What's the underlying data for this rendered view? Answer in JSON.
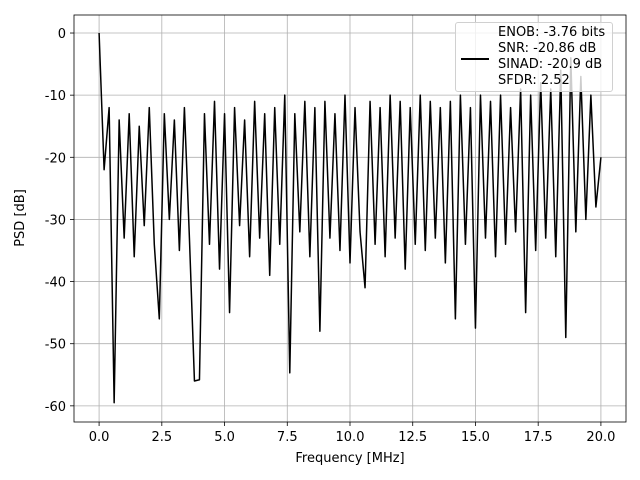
{
  "chart_data": {
    "type": "line",
    "xlabel": "Frequency [MHz]",
    "ylabel": "PSD [dB]",
    "x": [
      0,
      0.2,
      0.4,
      0.6,
      0.8,
      1.0,
      1.2,
      1.4,
      1.6,
      1.8,
      2.0,
      2.2,
      2.4,
      2.6,
      2.8,
      3.0,
      3.2,
      3.4,
      3.6,
      3.8,
      4.0,
      4.2,
      4.4,
      4.6,
      4.8,
      5.0,
      5.2,
      5.4,
      5.6,
      5.8,
      6.0,
      6.2,
      6.4,
      6.6,
      6.8,
      7.0,
      7.2,
      7.4,
      7.6,
      7.8,
      8.0,
      8.2,
      8.4,
      8.6,
      8.8,
      9.0,
      9.2,
      9.4,
      9.6,
      9.8,
      10.0,
      10.2,
      10.4,
      10.6,
      10.8,
      11.0,
      11.2,
      11.4,
      11.6,
      11.8,
      12.0,
      12.2,
      12.4,
      12.6,
      12.8,
      13.0,
      13.2,
      13.4,
      13.6,
      13.8,
      14.0,
      14.2,
      14.4,
      14.6,
      14.8,
      15.0,
      15.2,
      15.4,
      15.6,
      15.8,
      16.0,
      16.2,
      16.4,
      16.6,
      16.8,
      17.0,
      17.2,
      17.4,
      17.6,
      17.8,
      18.0,
      18.2,
      18.4,
      18.6,
      18.8,
      19.0,
      19.2,
      19.4,
      19.6,
      19.8,
      20.0
    ],
    "series": [
      {
        "name": "ENOB: -3.76 bits\nSNR: -20.86 dB\nSINAD: -20.9 dB\nSFDR: 2.52",
        "color": "#000000",
        "values": [
          0,
          -22,
          -12,
          -59.5,
          -14,
          -33,
          -13,
          -36,
          -15,
          -31,
          -12,
          -34,
          -46,
          -13,
          -30,
          -14,
          -35,
          -12,
          -33,
          -56,
          -55.8,
          -13,
          -34,
          -11,
          -38,
          -13,
          -45,
          -12,
          -31,
          -14,
          -36,
          -11,
          -33,
          -13,
          -39,
          -12,
          -34,
          -10,
          -54.7,
          -13,
          -32,
          -11,
          -36,
          -12,
          -48,
          -11,
          -33,
          -13,
          -35,
          -10,
          -37,
          -12,
          -32,
          -41,
          -11,
          -34,
          -12,
          -36,
          -10,
          -33,
          -11,
          -38,
          -12,
          -34,
          -10,
          -35,
          -11,
          -33,
          -12,
          -37,
          -11,
          -46,
          -10,
          -34,
          -12,
          -47.5,
          -10,
          -33,
          -11,
          -36,
          -10,
          -34,
          -12,
          -32,
          -9,
          -45,
          -10,
          -35,
          -8,
          -33,
          -9,
          -36,
          -6,
          -49,
          -4,
          -32,
          -7,
          -30,
          -10,
          -28,
          -20
        ]
      }
    ],
    "xlim": [
      -1,
      21
    ],
    "xticks": [
      {
        "value": 0,
        "label": "0.0"
      },
      2.5,
      {
        "value": 5,
        "label": "5.0"
      },
      7.5,
      {
        "value": 10,
        "label": "10.0"
      },
      12.5,
      {
        "value": 15,
        "label": "15.0"
      },
      17.5,
      {
        "value": 20,
        "label": "20.0"
      }
    ],
    "ylim": [
      -62.6,
      2.9
    ],
    "yticks": [
      0,
      -10,
      -20,
      -30,
      -40,
      -50,
      -60
    ],
    "grid": true,
    "legend": "upper right"
  }
}
